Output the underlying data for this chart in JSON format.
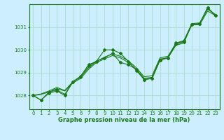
{
  "title": "Graphe pression niveau de la mer (hPa)",
  "bg_color": "#cceeff",
  "grid_color": "#aaddcc",
  "line_color": "#1a7a1a",
  "x_ticks": [
    0,
    1,
    2,
    3,
    4,
    5,
    6,
    7,
    8,
    9,
    10,
    11,
    12,
    13,
    14,
    15,
    16,
    17,
    18,
    19,
    20,
    21,
    22,
    23
  ],
  "y_ticks": [
    1028,
    1029,
    1030,
    1031
  ],
  "ylim": [
    1027.4,
    1032.0
  ],
  "xlim": [
    -0.5,
    23.5
  ],
  "series_jagged": [
    [
      1028.0,
      1027.8,
      1028.1,
      1028.2,
      1028.0,
      1028.6,
      1028.8,
      1029.3,
      1029.5,
      1030.0,
      1030.0,
      1029.85,
      1029.5,
      1029.1,
      1028.7,
      1028.75,
      1029.55,
      1029.65,
      1030.25,
      1030.35,
      1031.1,
      1031.15,
      1031.85,
      1031.5
    ],
    [
      1028.0,
      1027.8,
      1028.15,
      1028.25,
      1028.05,
      1028.6,
      1028.85,
      1029.35,
      1029.5,
      1029.65,
      1029.85,
      1029.45,
      1029.35,
      1029.15,
      1028.7,
      1028.75,
      1029.55,
      1029.65,
      1030.3,
      1030.4,
      1031.1,
      1031.15,
      1031.85,
      1031.5
    ]
  ],
  "series_smooth": [
    [
      1028.0,
      1028.05,
      1028.15,
      1028.3,
      1028.2,
      1028.55,
      1028.75,
      1029.15,
      1029.45,
      1029.6,
      1029.75,
      1029.65,
      1029.45,
      1029.15,
      1028.75,
      1028.8,
      1029.6,
      1029.65,
      1030.2,
      1030.3,
      1031.1,
      1031.1,
      1031.7,
      1031.5
    ],
    [
      1028.0,
      1028.07,
      1028.2,
      1028.35,
      1028.22,
      1028.6,
      1028.82,
      1029.22,
      1029.5,
      1029.68,
      1029.82,
      1029.72,
      1029.52,
      1029.22,
      1028.82,
      1028.87,
      1029.65,
      1029.72,
      1030.28,
      1030.38,
      1031.15,
      1031.18,
      1031.78,
      1031.55
    ]
  ],
  "figsize": [
    3.2,
    2.0
  ],
  "dpi": 100
}
